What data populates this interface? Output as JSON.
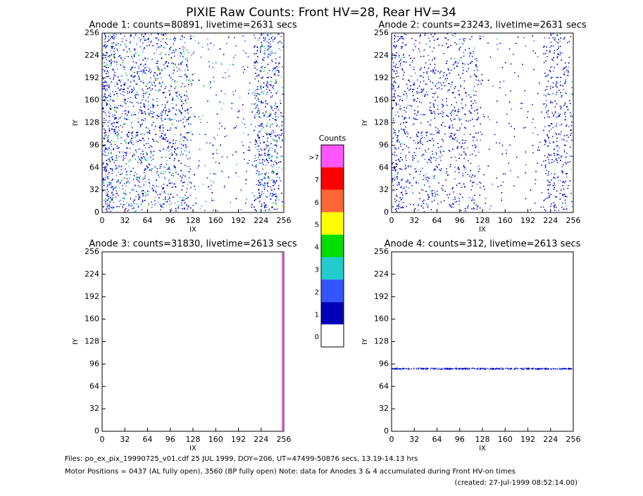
{
  "title": "PIXIE Raw Counts:  Front HV=28, Rear HV=34",
  "x_label": "IX",
  "y_label": "IY",
  "ticks": [
    "0",
    "32",
    "64",
    "96",
    "128",
    "160",
    "192",
    "224",
    "256"
  ],
  "panels": [
    {
      "title": "Anode 1: counts=80891, livetime=2631 secs"
    },
    {
      "title": "Anode 2: counts=23243, livetime=2631 secs"
    },
    {
      "title": "Anode 3: counts=31830, livetime=2613 secs"
    },
    {
      "title": "Anode 4: counts=312, livetime=2613 secs"
    }
  ],
  "colorbar": {
    "title": "Counts",
    "levels": [
      {
        "label": ">7",
        "color": "#ff55ff"
      },
      {
        "label": "7",
        "color": "#ff0000"
      },
      {
        "label": "6",
        "color": "#ff6633"
      },
      {
        "label": "5",
        "color": "#ffff00"
      },
      {
        "label": "4",
        "color": "#00dd00"
      },
      {
        "label": "3",
        "color": "#22cccc"
      },
      {
        "label": "2",
        "color": "#3355ff"
      },
      {
        "label": "1",
        "color": "#0000bb"
      },
      {
        "label": "0",
        "color": "#ffffff"
      }
    ]
  },
  "footer": {
    "files": "Files: po_ex_pix_19990725_v01.cdf    25 JUL 1999, DOY=206, UT=47499-50876 secs, 13.19-14.13 hrs",
    "motor": "Motor Positions = 0437 (AL fully open), 3560 (BP fully open)    Note: data for Anodes 3 & 4 accumulated during Front HV-on times",
    "created": "(created: 27-Jul-1999 08:52:14.00)"
  }
}
